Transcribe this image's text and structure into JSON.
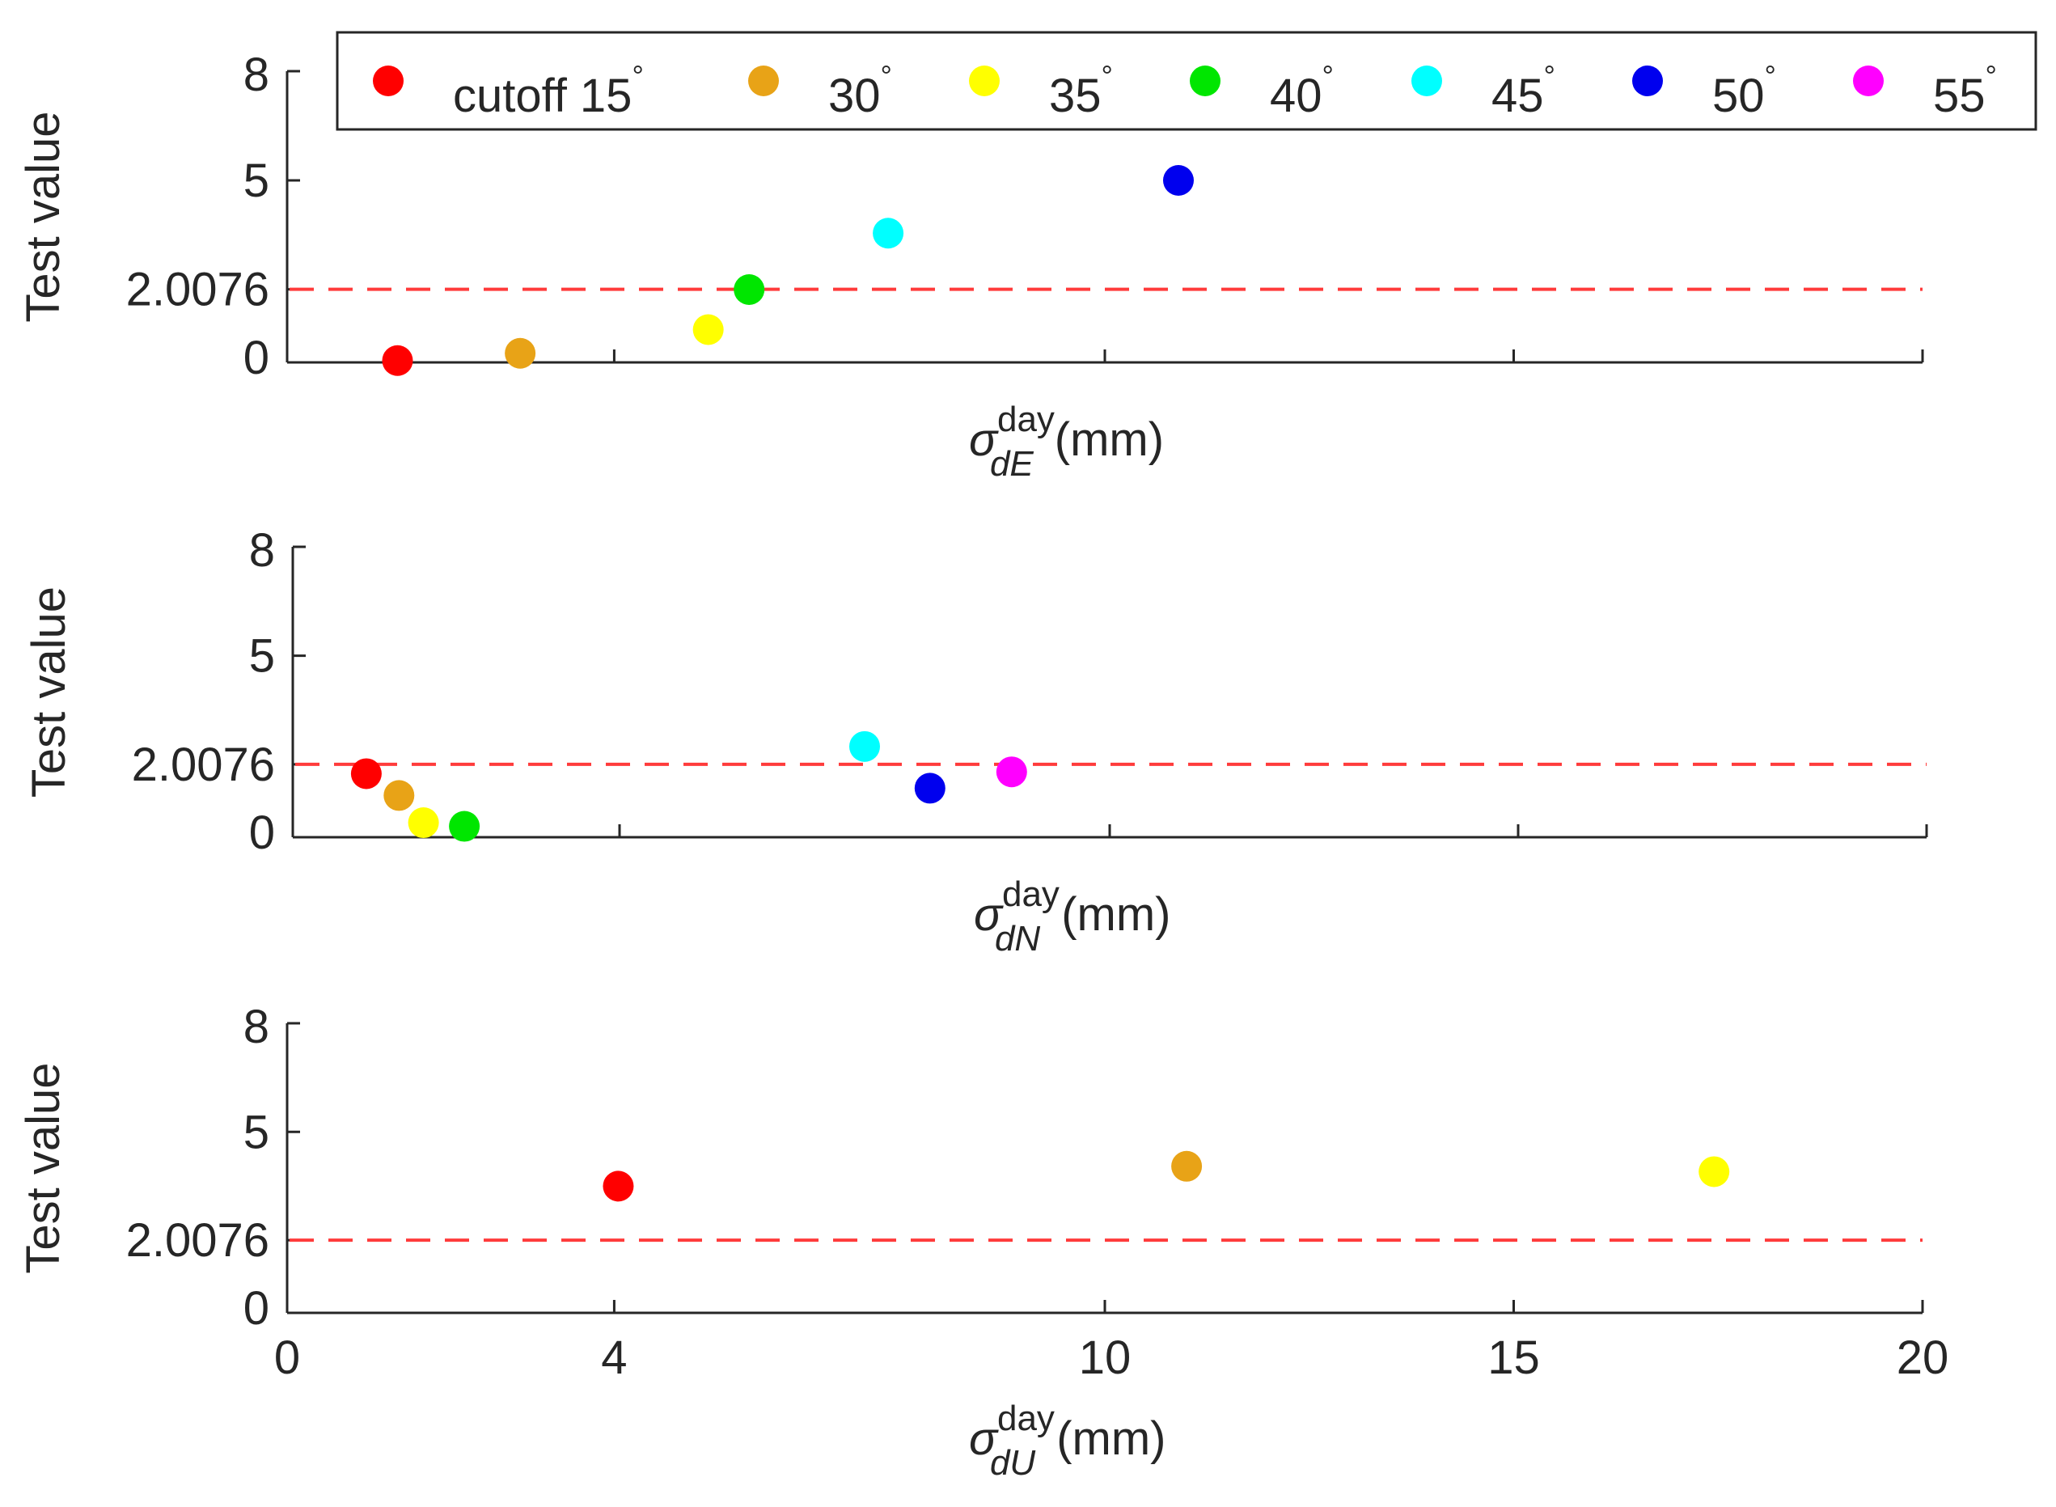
{
  "chart_data": [
    {
      "type": "scatter",
      "panel": "top",
      "ylabel": "Test value",
      "xlabel": {
        "symbol": "σ",
        "superscript": "day",
        "subscript": "dE",
        "unit": "(mm)"
      },
      "xlim": [
        0,
        20
      ],
      "ylim": [
        0,
        8
      ],
      "yticks": [
        0,
        2.0076,
        5,
        8
      ],
      "ytick_labels": [
        "0",
        "2.0076",
        "5",
        "8"
      ],
      "xticks": [
        0,
        4,
        10,
        15,
        20
      ],
      "xtick_labels_visible": false,
      "threshold": {
        "value": 2.0076,
        "color": "#ff3b3b",
        "style": "dashed"
      },
      "points": [
        {
          "label": "cutoff 15°",
          "x": 1.35,
          "y": 0.05,
          "color": "#ff0000"
        },
        {
          "label": "30°",
          "x": 2.85,
          "y": 0.25,
          "color": "#e8a317"
        },
        {
          "label": "35°",
          "x": 5.15,
          "y": 0.9,
          "color": "#ffff00"
        },
        {
          "label": "40°",
          "x": 5.65,
          "y": 2.0,
          "color": "#00e600"
        },
        {
          "label": "45°",
          "x": 7.35,
          "y": 3.55,
          "color": "#00ffff"
        },
        {
          "label": "50°",
          "x": 10.9,
          "y": 5.0,
          "color": "#0000ee"
        }
      ]
    },
    {
      "type": "scatter",
      "panel": "middle",
      "ylabel": "Test value",
      "xlabel": {
        "symbol": "σ",
        "superscript": "day",
        "subscript": "dN",
        "unit": "(mm)"
      },
      "xlim": [
        0,
        20
      ],
      "ylim": [
        0,
        8
      ],
      "yticks": [
        0,
        2.0076,
        5,
        8
      ],
      "ytick_labels": [
        "0",
        "2.0076",
        "5",
        "8"
      ],
      "xticks": [
        0,
        4,
        10,
        15,
        20
      ],
      "xtick_labels_visible": false,
      "threshold": {
        "value": 2.0076,
        "color": "#ff3b3b",
        "style": "dashed"
      },
      "points": [
        {
          "label": "cutoff 15°",
          "x": 0.9,
          "y": 1.75,
          "color": "#ff0000"
        },
        {
          "label": "30°",
          "x": 1.3,
          "y": 1.15,
          "color": "#e8a317"
        },
        {
          "label": "35°",
          "x": 1.6,
          "y": 0.4,
          "color": "#ffff00"
        },
        {
          "label": "40°",
          "x": 2.1,
          "y": 0.3,
          "color": "#00e600"
        },
        {
          "label": "45°",
          "x": 7.0,
          "y": 2.5,
          "color": "#00ffff"
        },
        {
          "label": "50°",
          "x": 7.8,
          "y": 1.35,
          "color": "#0000ee"
        },
        {
          "label": "55°",
          "x": 8.8,
          "y": 1.8,
          "color": "#ff00ff"
        }
      ]
    },
    {
      "type": "scatter",
      "panel": "bottom",
      "ylabel": "Test value",
      "xlabel": {
        "symbol": "σ",
        "superscript": "day",
        "subscript": "dU",
        "unit": "(mm)"
      },
      "xlim": [
        0,
        20
      ],
      "ylim": [
        0,
        8
      ],
      "yticks": [
        0,
        2.0076,
        5,
        8
      ],
      "ytick_labels": [
        "0",
        "2.0076",
        "5",
        "8"
      ],
      "xticks": [
        0,
        4,
        10,
        15,
        20
      ],
      "xtick_labels": [
        "0",
        "4",
        "10",
        "15",
        "20"
      ],
      "xtick_labels_visible": true,
      "threshold": {
        "value": 2.0076,
        "color": "#ff3b3b",
        "style": "dashed"
      },
      "points": [
        {
          "label": "cutoff 15°",
          "x": 4.05,
          "y": 3.5,
          "color": "#ff0000"
        },
        {
          "label": "30°",
          "x": 11.0,
          "y": 4.05,
          "color": "#e8a317"
        },
        {
          "label": "35°",
          "x": 17.45,
          "y": 3.9,
          "color": "#ffff00"
        }
      ]
    }
  ],
  "legend": {
    "placement": "top",
    "entries": [
      {
        "label": "cutoff 15",
        "color": "#ff0000"
      },
      {
        "label": "30",
        "color": "#e8a317"
      },
      {
        "label": "35",
        "color": "#ffff00"
      },
      {
        "label": "40",
        "color": "#00e600"
      },
      {
        "label": "45",
        "color": "#00ffff"
      },
      {
        "label": "50",
        "color": "#0000ee"
      },
      {
        "label": "55",
        "color": "#ff00ff"
      }
    ],
    "degree_symbol": "°"
  }
}
